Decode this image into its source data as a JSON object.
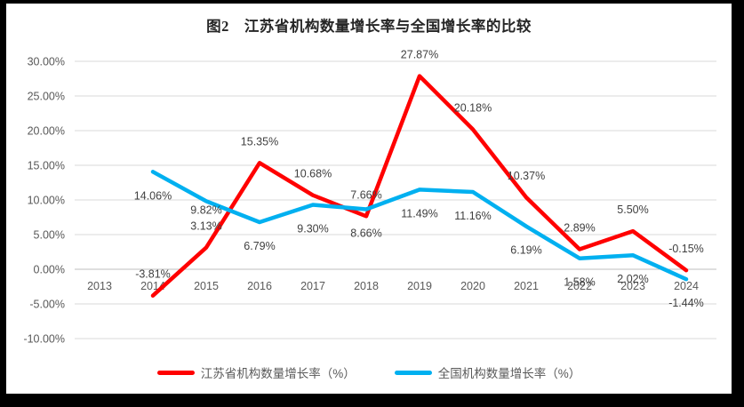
{
  "title": "图2　江苏省机构数量增长率与全国增长率的比较",
  "colors": {
    "jiangsu_red": "#FF0000",
    "national_blue": "#00B0F0",
    "gridline": "#D9D9D9",
    "zero_axis_line": "#BFBFBF",
    "axis_text": "#595959",
    "data_label_text": "#404040",
    "frame_background": "#000000",
    "chart_background": "#FFFFFF"
  },
  "chart_data": {
    "type": "line",
    "title": "图2　江苏省机构数量增长率与全国增长率的比较",
    "categories": [
      "2013",
      "2014",
      "2015",
      "2016",
      "2017",
      "2018",
      "2019",
      "2020",
      "2021",
      "2022",
      "2023",
      "2024"
    ],
    "series": [
      {
        "id": "jiangsu",
        "name": "江苏省机构数量增长率（%）",
        "color": "#FF0000",
        "values": [
          null,
          -3.81,
          3.13,
          15.35,
          10.68,
          7.66,
          27.87,
          20.18,
          10.37,
          2.89,
          5.5,
          -0.15
        ],
        "label_position": "above",
        "label_dy_overrides": {}
      },
      {
        "id": "national",
        "name": "全国机构数量增长率（%）",
        "color": "#00B0F0",
        "values": [
          null,
          14.06,
          9.82,
          6.79,
          9.3,
          8.66,
          11.49,
          11.16,
          6.19,
          1.58,
          2.02,
          -1.44
        ],
        "label_position": "below",
        "label_dy_overrides": {
          "2": 14
        }
      }
    ],
    "ylim": [
      -10,
      30
    ],
    "ytick_step": 5,
    "ytick_labels": [
      "30.00%",
      "25.00%",
      "20.00%",
      "15.00%",
      "10.00%",
      "5.00%",
      "0.00%",
      "-5.00%",
      "-10.00%"
    ],
    "value_label_format": "0.00%",
    "grid": true,
    "legend_position": "bottom"
  }
}
